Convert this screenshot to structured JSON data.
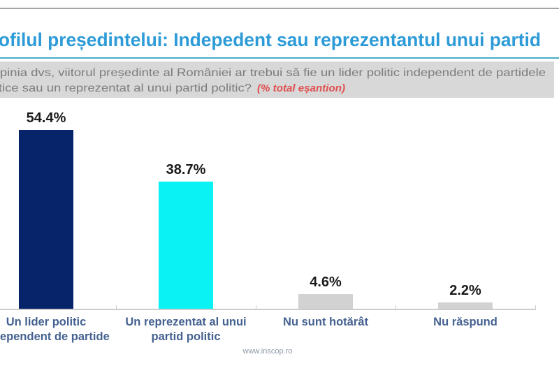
{
  "page": {
    "title": "Profilul președintelui: Indepedent sau reprezentantul unui partid",
    "question_line1": "În opinia dvs, viitorul președinte al României ar trebui să fie un lider politic independent de partidele",
    "question_line2": "politice sau un reprezentat al unui partid politic?",
    "question_note": "(% total eșantion)",
    "footer_url": "www.inscop.ro"
  },
  "colors": {
    "title_blue": "#2d9bd7",
    "underline_teal": "#4aacc5",
    "question_bg": "#d8d8d8",
    "question_text": "#7c7c7c",
    "question_note_red": "#e04f4f",
    "axis_gray": "#cbcbcb",
    "value_label": "#1a1a1a",
    "category_label_blue": "#44618f",
    "footer_gray": "#8e99a8"
  },
  "chart_data": {
    "type": "bar",
    "categories": [
      "Un lider politic independent de partide",
      "Un reprezentat al unui partid politic",
      "Nu sunt hotărât",
      "Nu răspund"
    ],
    "values": [
      54.4,
      38.7,
      4.6,
      2.2
    ],
    "value_labels": [
      "54.4%",
      "38.7%",
      "4.6%",
      "2.2%"
    ],
    "bar_colors": [
      "#07246b",
      "#0bf2f5",
      "#d2d2d2",
      "#d2d2d2"
    ],
    "title": "Profilul președintelui: Indepedent sau reprezentantul unui partid",
    "xlabel": "",
    "ylabel": "",
    "ylim": [
      0,
      60
    ],
    "grid": false,
    "legend": false,
    "data_labels": "percent above bars"
  }
}
